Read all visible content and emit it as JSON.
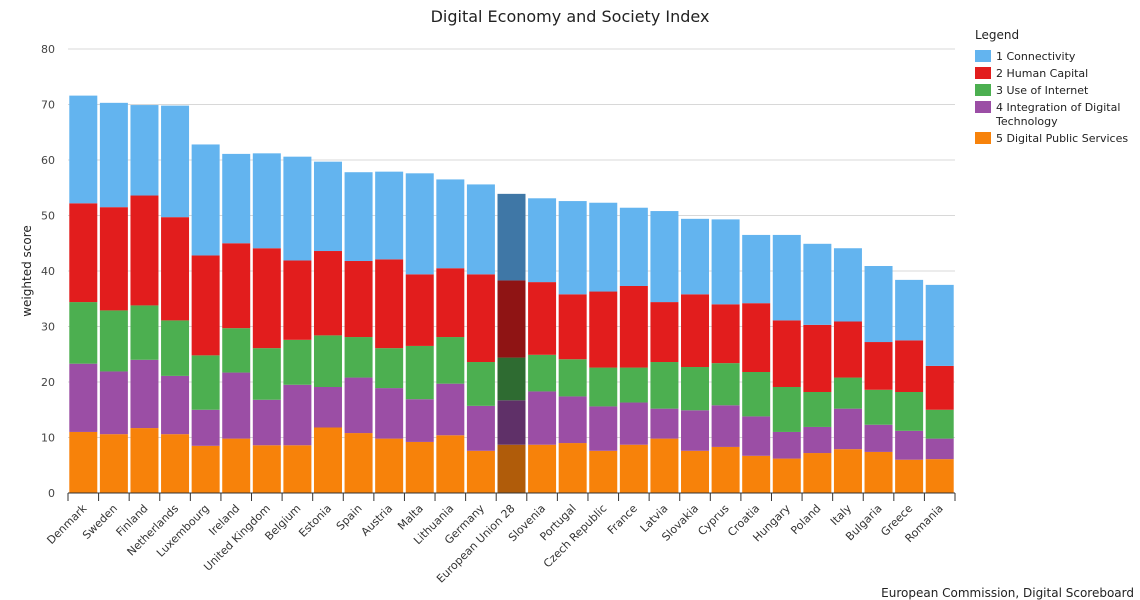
{
  "chart_data": {
    "type": "bar",
    "stacked": true,
    "title": "Digital Economy and Society Index",
    "ylabel": "weighted score",
    "xlabel": "",
    "ylim": [
      0,
      80
    ],
    "yticks": [
      0,
      10,
      20,
      30,
      40,
      50,
      60,
      70,
      80
    ],
    "grid": true,
    "legend_title": "Legend",
    "legend_position": "right",
    "credit": "European Commission, Digital Scoreboard",
    "highlighted_category": "European Union 28",
    "categories": [
      "Denmark",
      "Sweden",
      "Finland",
      "Netherlands",
      "Luxembourg",
      "Ireland",
      "United Kingdom",
      "Belgium",
      "Estonia",
      "Spain",
      "Austria",
      "Malta",
      "Lithuania",
      "Germany",
      "European Union 28",
      "Slovenia",
      "Portugal",
      "Czech Republic",
      "France",
      "Latvia",
      "Slovakia",
      "Cyprus",
      "Croatia",
      "Hungary",
      "Poland",
      "Italy",
      "Bulgaria",
      "Greece",
      "Romania"
    ],
    "series": [
      {
        "name": "5 Digital Public Services",
        "color": "#f7820a",
        "highlight_color": "#b05c0a",
        "values": [
          11.0,
          10.6,
          11.7,
          10.6,
          8.5,
          9.8,
          8.6,
          8.6,
          11.8,
          10.8,
          9.8,
          9.2,
          10.4,
          7.6,
          8.7,
          8.7,
          9.0,
          7.6,
          8.7,
          9.8,
          7.6,
          8.3,
          6.7,
          6.2,
          7.2,
          7.9,
          7.4,
          6.0,
          6.1
        ]
      },
      {
        "name": "4 Integration of Digital\nTechnology",
        "color": "#9b4ea5",
        "highlight_color": "#5f3068",
        "values": [
          12.3,
          11.3,
          12.3,
          10.5,
          6.5,
          11.9,
          8.2,
          10.9,
          7.3,
          10.0,
          9.1,
          7.7,
          9.3,
          8.1,
          8.0,
          9.6,
          8.4,
          8.0,
          7.6,
          5.4,
          7.3,
          7.5,
          7.1,
          4.8,
          4.7,
          7.3,
          4.9,
          5.2,
          3.7
        ]
      },
      {
        "name": "3 Use of Internet",
        "color": "#4caf50",
        "highlight_color": "#2e6b31",
        "values": [
          11.1,
          11.0,
          9.8,
          10.0,
          9.8,
          8.0,
          9.3,
          8.1,
          9.3,
          7.3,
          7.2,
          9.6,
          8.4,
          7.9,
          7.7,
          6.6,
          6.7,
          7.0,
          6.3,
          8.4,
          7.8,
          7.6,
          8.0,
          8.1,
          6.3,
          5.6,
          6.3,
          7.0,
          5.2
        ]
      },
      {
        "name": "2 Human Capital",
        "color": "#e21d1d",
        "highlight_color": "#8f1414",
        "values": [
          17.8,
          18.6,
          19.8,
          18.6,
          18.0,
          15.3,
          18.0,
          14.3,
          15.2,
          13.7,
          16.0,
          12.9,
          12.4,
          15.8,
          13.9,
          13.1,
          11.7,
          13.7,
          14.7,
          10.8,
          13.1,
          10.6,
          12.4,
          12.0,
          12.1,
          10.1,
          8.6,
          9.3,
          7.9
        ]
      },
      {
        "name": "1 Connectivity",
        "color": "#63b4ef",
        "highlight_color": "#3f77a6",
        "values": [
          19.4,
          18.8,
          16.3,
          20.1,
          20.0,
          16.1,
          17.1,
          18.7,
          16.1,
          16.0,
          15.8,
          18.2,
          16.0,
          16.2,
          15.6,
          15.1,
          16.8,
          16.0,
          14.1,
          16.4,
          13.6,
          15.3,
          12.3,
          15.4,
          14.6,
          13.2,
          13.7,
          10.9,
          14.6
        ]
      }
    ],
    "legend_order": [
      "1 Connectivity",
      "2 Human Capital",
      "3 Use of Internet",
      "4 Integration of Digital\nTechnology",
      "5 Digital Public Services"
    ]
  }
}
